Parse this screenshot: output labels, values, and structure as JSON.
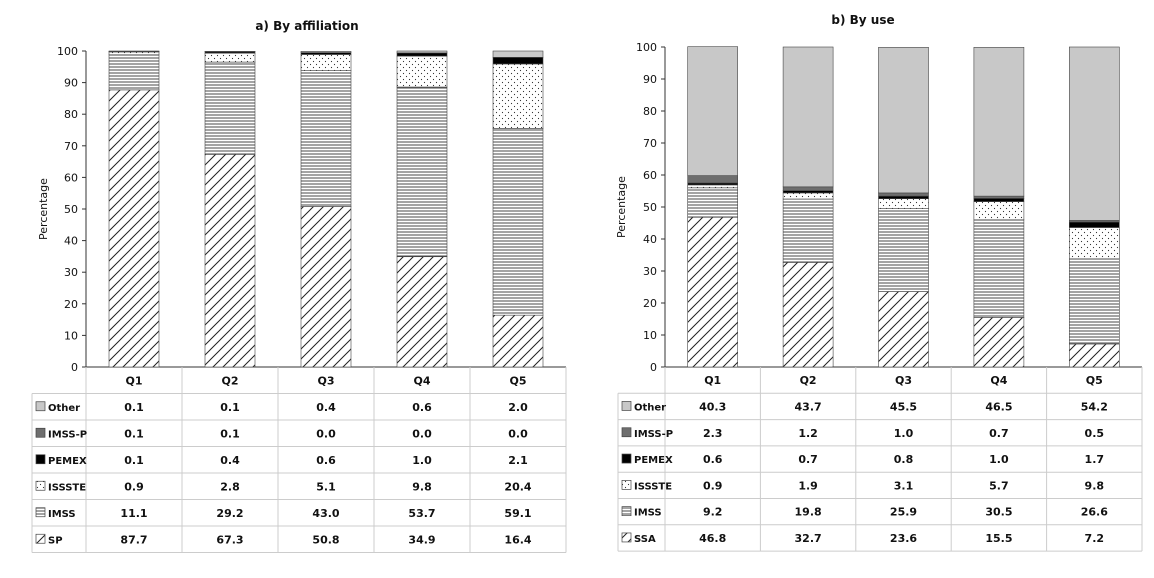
{
  "patterns": [
    "hatch-diagonal",
    "hatch-horizontal",
    "dots",
    "solid-black",
    "solid-darkgray",
    "solid-lightgray"
  ],
  "colors": {
    "other": "#c8c8c8",
    "imssp": "#6e6e6e",
    "pemex": "#000000",
    "line": "#333333",
    "grid": "#cccccc"
  },
  "chart_data": [
    {
      "type": "stacked-bar",
      "title": "a) By affiliation",
      "ylabel": "Percentage",
      "ylim": [
        0,
        100
      ],
      "yticks": [
        0,
        10,
        20,
        30,
        40,
        50,
        60,
        70,
        80,
        90,
        100
      ],
      "categories": [
        "Q1",
        "Q2",
        "Q3",
        "Q4",
        "Q5"
      ],
      "series": [
        {
          "name": "SP",
          "pattern": "hatch-diagonal",
          "values": [
            87.7,
            67.3,
            50.8,
            34.9,
            16.4
          ]
        },
        {
          "name": "IMSS",
          "pattern": "hatch-horizontal",
          "values": [
            11.1,
            29.2,
            43.0,
            53.7,
            59.1
          ]
        },
        {
          "name": "ISSSTE",
          "pattern": "dots",
          "values": [
            0.9,
            2.8,
            5.1,
            9.8,
            20.4
          ]
        },
        {
          "name": "PEMEX",
          "pattern": "solid-black",
          "values": [
            0.1,
            0.4,
            0.6,
            1.0,
            2.1
          ]
        },
        {
          "name": "IMSS-P",
          "pattern": "solid-darkgray",
          "values": [
            0.1,
            0.1,
            0.0,
            0.0,
            0.0
          ]
        },
        {
          "name": "Other",
          "pattern": "solid-lightgray",
          "values": [
            0.1,
            0.1,
            0.4,
            0.6,
            2.0
          ]
        }
      ],
      "table_rows": [
        {
          "name": "Other",
          "values": [
            "0.1",
            "0.1",
            "0.4",
            "0.6",
            "2.0"
          ]
        },
        {
          "name": "IMSS-P",
          "values": [
            "0.1",
            "0.1",
            "0.0",
            "0.0",
            "0.0"
          ]
        },
        {
          "name": "PEMEX",
          "values": [
            "0.1",
            "0.4",
            "0.6",
            "1.0",
            "2.1"
          ]
        },
        {
          "name": "ISSSTE",
          "values": [
            "0.9",
            "2.8",
            "5.1",
            "9.8",
            "20.4"
          ]
        },
        {
          "name": "IMSS",
          "values": [
            "11.1",
            "29.2",
            "43.0",
            "53.7",
            "59.1"
          ]
        },
        {
          "name": "SP",
          "values": [
            "87.7",
            "67.3",
            "50.8",
            "34.9",
            "16.4"
          ]
        }
      ]
    },
    {
      "type": "stacked-bar",
      "title": "b) By use",
      "ylabel": "Percentage",
      "ylim": [
        0,
        100
      ],
      "yticks": [
        0,
        10,
        20,
        30,
        40,
        50,
        60,
        70,
        80,
        90,
        100
      ],
      "categories": [
        "Q1",
        "Q2",
        "Q3",
        "Q4",
        "Q5"
      ],
      "series": [
        {
          "name": "SSA",
          "pattern": "hatch-diagonal",
          "values": [
            46.8,
            32.7,
            23.6,
            15.5,
            7.2
          ]
        },
        {
          "name": "IMSS",
          "pattern": "hatch-horizontal",
          "values": [
            9.2,
            19.8,
            25.9,
            30.5,
            26.6
          ]
        },
        {
          "name": "ISSSTE",
          "pattern": "dots",
          "values": [
            0.9,
            1.9,
            3.1,
            5.7,
            9.8
          ]
        },
        {
          "name": "PEMEX",
          "pattern": "solid-black",
          "values": [
            0.6,
            0.7,
            0.8,
            1.0,
            1.7
          ]
        },
        {
          "name": "IMSS-P",
          "pattern": "solid-darkgray",
          "values": [
            2.3,
            1.2,
            1.0,
            0.7,
            0.5
          ]
        },
        {
          "name": "Other",
          "pattern": "solid-lightgray",
          "values": [
            40.3,
            43.7,
            45.5,
            46.5,
            54.2
          ]
        }
      ],
      "table_rows": [
        {
          "name": "Other",
          "values": [
            "40.3",
            "43.7",
            "45.5",
            "46.5",
            "54.2"
          ]
        },
        {
          "name": "IMSS-P",
          "values": [
            "2.3",
            "1.2",
            "1.0",
            "0.7",
            "0.5"
          ]
        },
        {
          "name": "PEMEX",
          "values": [
            "0.6",
            "0.7",
            "0.8",
            "1.0",
            "1.7"
          ]
        },
        {
          "name": "ISSSTE",
          "values": [
            "0.9",
            "1.9",
            "3.1",
            "5.7",
            "9.8"
          ]
        },
        {
          "name": "IMSS",
          "values": [
            "9.2",
            "19.8",
            "25.9",
            "30.5",
            "26.6"
          ]
        },
        {
          "name": "SSA",
          "values": [
            "46.8",
            "32.7",
            "23.6",
            "15.5",
            "7.2"
          ]
        }
      ]
    }
  ]
}
